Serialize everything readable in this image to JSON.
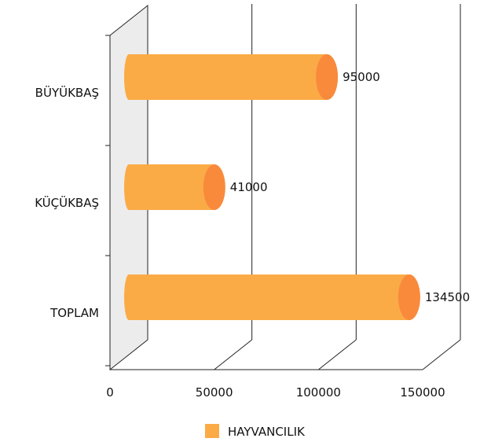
{
  "chart_data": {
    "type": "bar",
    "orientation": "horizontal",
    "style": "3d-cylinder",
    "categories": [
      "BÜYÜKBAŞ",
      "KÜÇÜKBAŞ",
      "TOPLAM"
    ],
    "series": [
      {
        "name": "HAYVANCILIK",
        "values": [
          95000,
          41000,
          134500
        ]
      }
    ],
    "xlim": [
      0,
      150000
    ],
    "xticks": [
      0,
      50000,
      100000,
      150000
    ],
    "xtick_labels": [
      "0",
      "50000",
      "100000",
      "150000"
    ],
    "value_labels": [
      "95000",
      "41000",
      "134500"
    ],
    "grid": true,
    "legend": "bottom",
    "colors": {
      "bar": "#fbab46",
      "cap": "#f98a3c",
      "wall": "#ececec"
    }
  }
}
